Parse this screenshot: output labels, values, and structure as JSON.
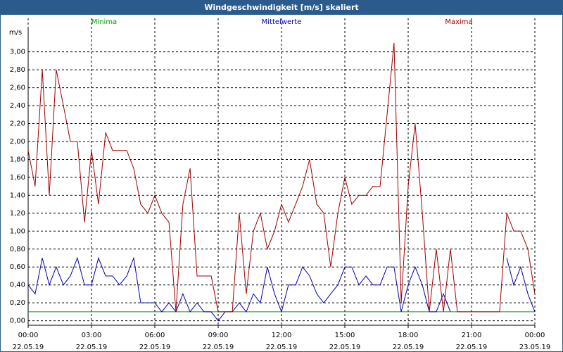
{
  "chart_data": {
    "type": "line",
    "title": "Windgeschwindigkeit [m/s] skaliert",
    "y_label": "m/s",
    "x": [
      0,
      0.33,
      0.67,
      1,
      1.33,
      1.67,
      2,
      2.33,
      2.67,
      3,
      3.33,
      3.67,
      4,
      4.33,
      4.67,
      5,
      5.33,
      5.67,
      6,
      6.33,
      6.67,
      7,
      7.33,
      7.67,
      8,
      8.33,
      8.67,
      9,
      9.33,
      9.67,
      10,
      10.33,
      10.67,
      11,
      11.33,
      11.67,
      12,
      12.33,
      12.67,
      13,
      13.33,
      13.67,
      14,
      14.33,
      14.67,
      15,
      15.33,
      15.67,
      16,
      16.33,
      16.67,
      17,
      17.33,
      17.67,
      18,
      18.33,
      18.67,
      19,
      19.33,
      19.67,
      20,
      20.33,
      20.67,
      21,
      21.33,
      21.67,
      22,
      22.33,
      22.67,
      23,
      23.33,
      23.67,
      24
    ],
    "series": [
      {
        "name": "Minima",
        "color": "#00a000",
        "values": [
          0.1,
          0.1,
          0.1,
          0.1,
          0.1,
          0.1,
          0.1,
          0.1,
          0.1,
          0.1,
          0.1,
          0.1,
          0.1,
          0.1,
          0.1,
          0.1,
          0.1,
          0.1,
          0.1,
          0.1,
          0.1,
          0.1,
          0.1,
          0.1,
          0.1,
          0.1,
          0.1,
          0.1,
          0.1,
          0.1,
          0.1,
          0.1,
          0.1,
          0.1,
          0.1,
          0.1,
          0.1,
          0.1,
          0.1,
          0.1,
          0.1,
          0.1,
          0.1,
          0.1,
          0.1,
          0.1,
          0.1,
          0.1,
          0.1,
          0.1,
          0.1,
          0.1,
          0.1,
          0.1,
          0.1,
          0.1,
          0.1,
          0.1,
          0.1,
          0.1,
          0.1,
          0.1,
          0.1,
          0.1,
          0.1,
          0.1,
          0.1,
          0.1,
          0.1,
          0.1,
          0.1,
          0.1,
          0.1
        ]
      },
      {
        "name": "Mittelwerte",
        "color": "#0000b0",
        "values": [
          0.4,
          0.3,
          0.7,
          0.4,
          0.6,
          0.4,
          0.5,
          0.7,
          0.4,
          0.4,
          0.7,
          0.5,
          0.5,
          0.4,
          0.5,
          0.7,
          0.2,
          0.2,
          0.2,
          0.1,
          0.2,
          0.1,
          0.3,
          0.1,
          0.2,
          0.1,
          0.1,
          0.0,
          0.1,
          0.1,
          0.2,
          0.1,
          0.3,
          0.2,
          0.6,
          0.3,
          0.1,
          0.4,
          0.4,
          0.6,
          0.5,
          0.3,
          0.2,
          0.3,
          0.4,
          0.6,
          0.6,
          0.4,
          0.5,
          0.4,
          0.4,
          0.6,
          0.6,
          0.1,
          0.4,
          0.6,
          0.4,
          0.1,
          0.1,
          0.3,
          0.1,
          null,
          null,
          null,
          null,
          null,
          null,
          null,
          0.7,
          0.4,
          0.6,
          0.3,
          0.1
        ]
      },
      {
        "name": "Maxima",
        "color": "#a00000",
        "values": [
          1.9,
          1.5,
          2.8,
          1.4,
          2.8,
          2.4,
          2.0,
          2.0,
          1.1,
          1.9,
          1.3,
          2.1,
          1.9,
          1.9,
          1.9,
          1.7,
          1.3,
          1.2,
          1.4,
          1.2,
          1.1,
          0.1,
          1.3,
          1.7,
          0.5,
          0.5,
          0.5,
          0.1,
          0.1,
          0.1,
          1.2,
          0.3,
          1.0,
          1.2,
          0.8,
          1.0,
          1.3,
          1.1,
          1.3,
          1.5,
          1.8,
          1.3,
          1.2,
          0.6,
          1.2,
          1.6,
          1.3,
          1.4,
          1.4,
          1.5,
          1.5,
          2.3,
          3.1,
          0.2,
          1.5,
          2.2,
          1.2,
          0.1,
          0.8,
          0.1,
          0.8,
          0.1,
          0.1,
          0.1,
          0.1,
          0.1,
          0.1,
          0.1,
          1.2,
          1.0,
          1.0,
          0.8,
          0.3
        ]
      }
    ],
    "xlim": [
      0,
      24
    ],
    "xticks": [
      {
        "value": 0,
        "label": [
          "00:00",
          "22.05.19"
        ]
      },
      {
        "value": 3,
        "label": [
          "03:00",
          "22.05.19"
        ]
      },
      {
        "value": 6,
        "label": [
          "06:00",
          "22.05.19"
        ]
      },
      {
        "value": 9,
        "label": [
          "09:00",
          "22.05.19"
        ]
      },
      {
        "value": 12,
        "label": [
          "12:00",
          "22.05.19"
        ]
      },
      {
        "value": 15,
        "label": [
          "15:00",
          "22.05.19"
        ]
      },
      {
        "value": 18,
        "label": [
          "18:00",
          "22.05.19"
        ]
      },
      {
        "value": 21,
        "label": [
          "21:00",
          "22.05.19"
        ]
      },
      {
        "value": 24,
        "label": [
          "00:00",
          "23.05.19"
        ]
      }
    ],
    "ylim": [
      -0.05,
      3.28
    ],
    "yticks": [
      {
        "value": 0,
        "label": "0,00"
      },
      {
        "value": 0.2,
        "label": "0,20"
      },
      {
        "value": 0.4,
        "label": "0,40"
      },
      {
        "value": 0.6,
        "label": "0,60"
      },
      {
        "value": 0.8,
        "label": "0,80"
      },
      {
        "value": 1,
        "label": "1,00"
      },
      {
        "value": 1.2,
        "label": "1,20"
      },
      {
        "value": 1.4,
        "label": "1,40"
      },
      {
        "value": 1.6,
        "label": "1,60"
      },
      {
        "value": 1.8,
        "label": "1,80"
      },
      {
        "value": 2,
        "label": "2,00"
      },
      {
        "value": 2.2,
        "label": "2,20"
      },
      {
        "value": 2.4,
        "label": "2,40"
      },
      {
        "value": 2.6,
        "label": "2,60"
      },
      {
        "value": 2.8,
        "label": "2,80"
      },
      {
        "value": 3,
        "label": "3,00"
      }
    ],
    "grid": true,
    "legend": "top"
  }
}
